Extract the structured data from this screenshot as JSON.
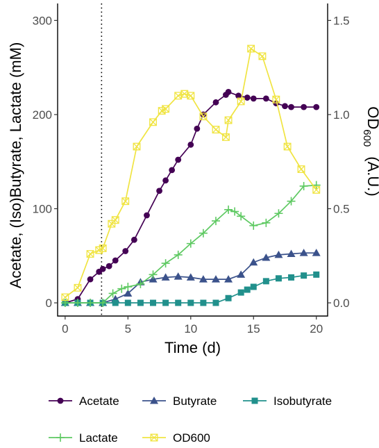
{
  "chart_data": {
    "type": "line",
    "xlabel": "Time (d)",
    "ylabel_left": "Acetate, (Iso)Butyrate, Lactate (mM)",
    "ylabel_right_main": "OD",
    "ylabel_right_sub": "600",
    "ylabel_right_unit": "(A.U.)",
    "xlim": [
      -0.6,
      20.9
    ],
    "ylim_left": [
      -14,
      318
    ],
    "ylim_right": [
      -0.07,
      1.59
    ],
    "x_ticks": [
      0,
      5,
      10,
      15,
      20
    ],
    "y_left_ticks": [
      0,
      100,
      200,
      300
    ],
    "y_left_tick_labels": [
      "0",
      "100",
      "200",
      "300"
    ],
    "y_right_ticks": [
      0.0,
      0.5,
      1.0,
      1.5
    ],
    "y_right_tick_labels": [
      "0.0",
      "0.5",
      "1.0",
      "1.5"
    ],
    "vline_x": 2.9,
    "grid": false,
    "legend_position": "bottom",
    "series": [
      {
        "name": "Acetate",
        "axis": "left",
        "color": "#440154",
        "marker": "circle",
        "x": [
          0,
          1,
          2,
          2.7,
          3,
          3.5,
          4,
          4.8,
          5.5,
          6.5,
          7.5,
          8,
          8.5,
          9,
          10,
          10.5,
          11,
          12,
          12.8,
          13,
          13.8,
          14.5,
          15,
          16,
          16.8,
          17.5,
          18,
          19,
          20
        ],
        "y": [
          0,
          4,
          25,
          33,
          36,
          39,
          45,
          55,
          67,
          93,
          119,
          130,
          141,
          152,
          168,
          185,
          200,
          213,
          221,
          224,
          220,
          218,
          217,
          217,
          212,
          209,
          208,
          208,
          208
        ]
      },
      {
        "name": "Butyrate",
        "axis": "left",
        "color": "#3b528b",
        "marker": "triangle",
        "x": [
          0,
          1,
          2,
          3,
          4,
          5,
          6,
          7,
          8,
          9,
          10,
          11,
          12,
          13,
          14,
          15,
          16,
          17,
          18,
          19,
          20
        ],
        "y": [
          0,
          0,
          0,
          0,
          4,
          10,
          22,
          25,
          27,
          28,
          27,
          25,
          25,
          25,
          30,
          43,
          48,
          51,
          52,
          53,
          53
        ]
      },
      {
        "name": "Isobutyrate",
        "axis": "left",
        "color": "#21908c",
        "marker": "square",
        "x": [
          0,
          1,
          2,
          3,
          4,
          5,
          6,
          7,
          8,
          9,
          10,
          11,
          12,
          13,
          14,
          14.5,
          15,
          16,
          17,
          18,
          19,
          20
        ],
        "y": [
          0,
          0,
          0,
          0,
          0,
          0,
          0,
          0,
          0,
          0,
          0,
          0,
          0,
          5,
          11,
          14,
          17,
          23,
          26,
          27,
          29,
          30
        ]
      },
      {
        "name": "Lactate",
        "axis": "left",
        "color": "#5ec962",
        "marker": "plus",
        "x": [
          0,
          1,
          2,
          3,
          3.8,
          4.5,
          5,
          6,
          7,
          8,
          9,
          10,
          11,
          12,
          13,
          13.5,
          14,
          15,
          16,
          17,
          18,
          19,
          20
        ],
        "y": [
          0,
          0,
          0,
          0,
          10,
          15,
          17,
          20,
          30,
          42,
          51,
          63,
          74,
          87,
          99,
          97,
          92,
          82,
          85,
          95,
          108,
          124,
          125
        ]
      },
      {
        "name": "OD600",
        "axis": "right",
        "color": "#f0e442",
        "marker": "square-cross",
        "x": [
          0,
          1,
          2,
          2.7,
          3,
          3.7,
          4,
          4.8,
          5.7,
          7,
          7.7,
          8,
          9,
          9.5,
          10,
          11,
          12,
          12.8,
          13,
          14,
          14.8,
          15.7,
          16.8,
          17.7,
          18.8,
          20
        ],
        "y": [
          0.03,
          0.08,
          0.26,
          0.28,
          0.29,
          0.42,
          0.44,
          0.54,
          0.83,
          0.96,
          1.02,
          1.03,
          1.1,
          1.11,
          1.1,
          0.99,
          0.92,
          0.88,
          0.97,
          1.07,
          1.35,
          1.31,
          1.08,
          0.83,
          0.71,
          0.6
        ]
      }
    ]
  }
}
